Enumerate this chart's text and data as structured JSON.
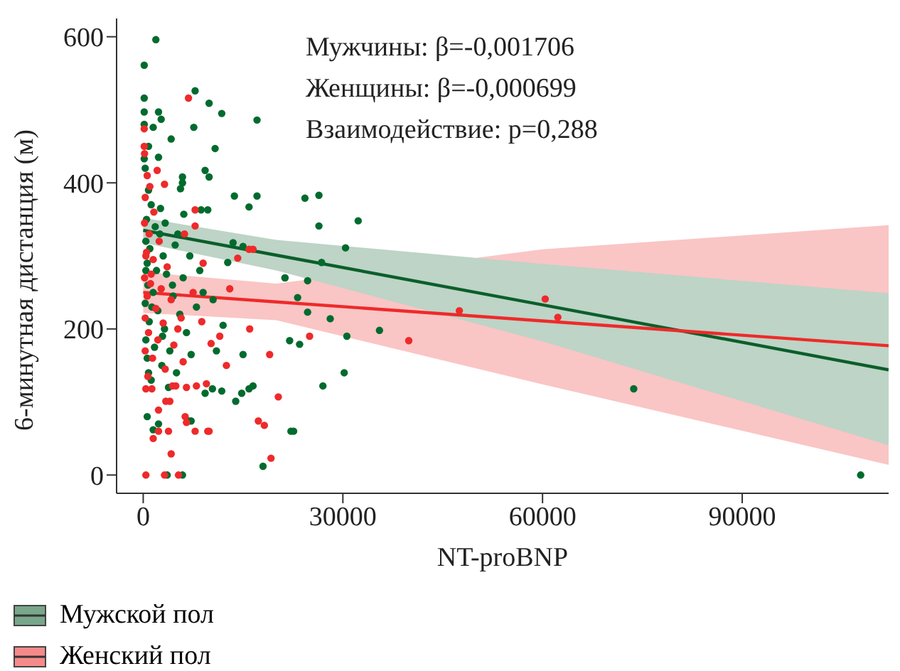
{
  "chart_data": {
    "type": "scatter",
    "xlabel": "NT-proBNP",
    "ylabel": "6-минутная дистанция (м)",
    "annotations": [
      "Мужчины: β=-0,001706",
      "Женщины: β=-0,000699",
      "Взаимодействие: p=0,288"
    ],
    "xlim": [
      -4000,
      112000
    ],
    "xticks": [
      0,
      30000,
      60000,
      90000
    ],
    "ylim": [
      -25,
      625
    ],
    "yticks": [
      0,
      200,
      400,
      600
    ],
    "grid": false,
    "legend": "bottom left",
    "series": [
      {
        "type": "line",
        "name": "Мужской пол",
        "color": "#0b5e2b",
        "marker": "none",
        "x": [
          0,
          20000,
          60000,
          112000
        ],
        "values": [
          335,
          301,
          233,
          144
        ],
        "lower": [
          318,
          280,
          183,
          41
        ],
        "upper": [
          352,
          322,
          289,
          249
        ]
      },
      {
        "type": "line",
        "name": "Женский пол",
        "color": "#ee2a2a",
        "marker": "none",
        "x": [
          0,
          20000,
          60000,
          112000
        ],
        "values": [
          250,
          237,
          211,
          177
        ],
        "lower": [
          222,
          212,
          124,
          14
        ],
        "upper": [
          278,
          262,
          309,
          342
        ]
      },
      {
        "color": "#006b2e",
        "marker": "circle",
        "x": [
          1900,
          150,
          150,
          2300,
          150,
          150,
          1500,
          2700,
          4200,
          7800,
          9900,
          11800,
          7600,
          17100,
          10800,
          2300,
          800,
          150,
          9300,
          9900,
          5900,
          5900,
          5600,
          13700,
          17100,
          15900,
          24300,
          26400,
          26400,
          32300,
          30400,
          26800,
          21300,
          13500,
          15000,
          12700,
          9700,
          8700,
          6100,
          18000,
          3600,
          5900,
          600,
          1500,
          2300,
          6800,
          7200,
          22200,
          22600,
          13900,
          14800,
          15900,
          16500,
          27000,
          30200,
          22000,
          23500,
          30600,
          35500,
          24700,
          23200,
          21300,
          24700,
          28100,
          11800,
          10400,
          9300,
          73700,
          107800,
          300,
          800,
          1200,
          500,
          1800,
          2500,
          400,
          1000,
          3000,
          600,
          2000,
          3500,
          700,
          1500,
          4500,
          300,
          2200,
          5500,
          900,
          3200,
          6500,
          400,
          1700,
          4000,
          7200,
          600,
          2800,
          5000,
          1200,
          3800,
          8000,
          9000,
          6000,
          7000,
          4800,
          3300,
          2600,
          5200,
          8500,
          10500,
          12000,
          15000,
          11000,
          400,
          1300,
          2900,
          4400,
          800
        ],
        "values": [
          596,
          561,
          516,
          497,
          497,
          480,
          476,
          487,
          460,
          526,
          509,
          495,
          476,
          486,
          447,
          435,
          450,
          433,
          417,
          408,
          408,
          400,
          392,
          382,
          382,
          367,
          379,
          383,
          341,
          348,
          311,
          291,
          270,
          318,
          313,
          291,
          363,
          363,
          357,
          12,
          0,
          0,
          80,
          62,
          70,
          74,
          74,
          60,
          60,
          101,
          112,
          118,
          122,
          122,
          140,
          184,
          179,
          190,
          198,
          223,
          243,
          270,
          266,
          214,
          115,
          118,
          112,
          118,
          0,
          420,
          390,
          370,
          350,
          340,
          330,
          320,
          310,
          300,
          290,
          280,
          275,
          260,
          250,
          245,
          235,
          225,
          220,
          210,
          200,
          195,
          185,
          175,
          170,
          165,
          160,
          150,
          140,
          130,
          120,
          230,
          250,
          270,
          300,
          315,
          345,
          365,
          330,
          280,
          240,
          205,
          165,
          170,
          280,
          230,
          190,
          260,
          140
        ]
      },
      {
        "color": "#ee2a2a",
        "marker": "circle",
        "x": [
          6800,
          150,
          150,
          2100,
          3200,
          7800,
          7800,
          14200,
          15900,
          16500,
          400,
          3200,
          5300,
          4200,
          1500,
          2300,
          3800,
          6300,
          6500,
          7800,
          9700,
          9900,
          17300,
          18200,
          19200,
          20300,
          2300,
          3400,
          4000,
          400,
          1300,
          4400,
          4900,
          8000,
          6500,
          9500,
          47500,
          39900,
          60400,
          62300,
          200,
          600,
          1000,
          300,
          1600,
          200,
          900,
          2400,
          500,
          1500,
          3600,
          200,
          1100,
          2700,
          600,
          4200,
          1900,
          300,
          3000,
          5200,
          800,
          2200,
          4600,
          300,
          1400,
          6000,
          3300,
          700,
          5700,
          8800,
          11500,
          12500,
          10200,
          7500,
          9000,
          6200,
          13000,
          16000,
          19000,
          25000,
          400,
          1200
        ],
        "values": [
          516,
          474,
          450,
          417,
          398,
          363,
          341,
          297,
          309,
          309,
          0,
          0,
          0,
          29,
          50,
          60,
          60,
          80,
          72,
          60,
          60,
          60,
          74,
          68,
          23,
          107,
          89,
          101,
          101,
          118,
          118,
          122,
          122,
          122,
          120,
          125,
          225,
          184,
          241,
          216,
          440,
          410,
          395,
          380,
          360,
          345,
          330,
          320,
          305,
          295,
          285,
          270,
          262,
          255,
          245,
          240,
          228,
          215,
          208,
          200,
          195,
          185,
          178,
          170,
          160,
          155,
          145,
          135,
          215,
          210,
          190,
          150,
          180,
          250,
          290,
          330,
          255,
          200,
          165,
          190,
          300,
          275
        ]
      }
    ]
  }
}
